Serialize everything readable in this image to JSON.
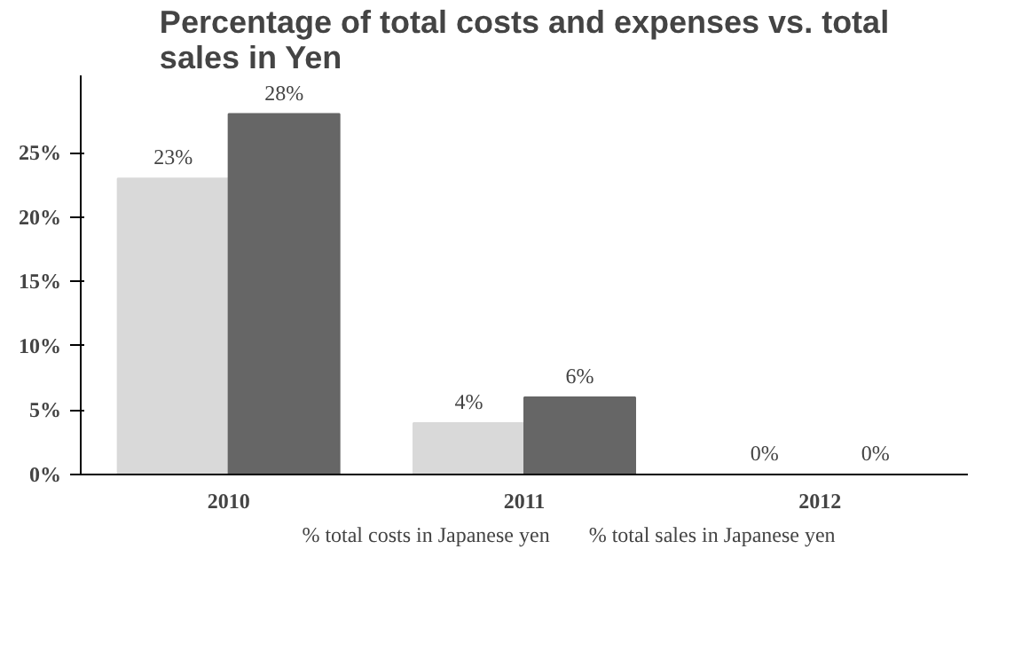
{
  "chart_data": {
    "type": "bar",
    "title": "Percentage of total costs and expenses vs. total sales in Yen",
    "categories": [
      "2010",
      "2011",
      "2012"
    ],
    "series": [
      {
        "name": "% total costs in Japanese yen",
        "color": "#d9d9d9",
        "values": [
          23,
          4,
          0
        ],
        "value_labels": [
          "23%",
          "4%",
          "0%"
        ]
      },
      {
        "name": "% total sales in Japanese yen",
        "color": "#666666",
        "values": [
          28,
          6,
          0
        ],
        "value_labels": [
          "28%",
          "6%",
          "0%"
        ]
      }
    ],
    "ylim": [
      0,
      31
    ],
    "yticks": [
      {
        "value": 0,
        "label": "0%"
      },
      {
        "value": 5,
        "label": "5%"
      },
      {
        "value": 10,
        "label": "10%"
      },
      {
        "value": 15,
        "label": "15%"
      },
      {
        "value": 20,
        "label": "20%"
      },
      {
        "value": 25,
        "label": "25%"
      }
    ],
    "grid": false,
    "legend": "bottom"
  }
}
